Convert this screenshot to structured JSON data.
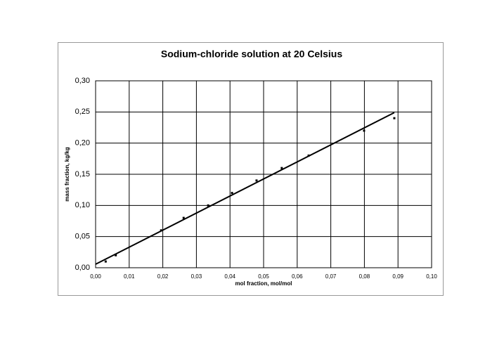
{
  "chart_data": {
    "type": "scatter",
    "title": "Sodium-chloride solution at 20 Celsius",
    "xlabel": "mol fraction, mol/mol",
    "ylabel": "mass fraction, kg/kg",
    "x": [
      0.003,
      0.006,
      0.0195,
      0.0262,
      0.0335,
      0.0406,
      0.0479,
      0.0554,
      0.0634,
      0.0799,
      0.0889
    ],
    "values": [
      0.01,
      0.02,
      0.06,
      0.08,
      0.1,
      0.12,
      0.14,
      0.16,
      0.18,
      0.22,
      0.24
    ],
    "color": "#000000",
    "trendline": {
      "x": [
        0,
        0.0889
      ],
      "values": [
        0.0056,
        0.249
      ],
      "color": "#000000"
    },
    "xlim": [
      0,
      0.1
    ],
    "xticks": [
      {
        "value": 0,
        "label": "0,00"
      },
      {
        "value": 0.01,
        "label": "0,01"
      },
      {
        "value": 0.02,
        "label": "0,02"
      },
      {
        "value": 0.03,
        "label": "0,03"
      },
      {
        "value": 0.04,
        "label": "0,04"
      },
      {
        "value": 0.05,
        "label": "0,05"
      },
      {
        "value": 0.06,
        "label": "0,06"
      },
      {
        "value": 0.07,
        "label": "0,07"
      },
      {
        "value": 0.08,
        "label": "0,08"
      },
      {
        "value": 0.09,
        "label": "0,09"
      },
      {
        "value": 0.1,
        "label": "0,10"
      }
    ],
    "ylim": [
      0,
      0.3
    ],
    "yticks": [
      {
        "value": 0,
        "label": "0,00"
      },
      {
        "value": 0.05,
        "label": "0,05"
      },
      {
        "value": 0.1,
        "label": "0,10"
      },
      {
        "value": 0.15,
        "label": "0,15"
      },
      {
        "value": 0.2,
        "label": "0,20"
      },
      {
        "value": 0.25,
        "label": "0,25"
      },
      {
        "value": 0.3,
        "label": "0,30"
      }
    ],
    "grid": true
  }
}
